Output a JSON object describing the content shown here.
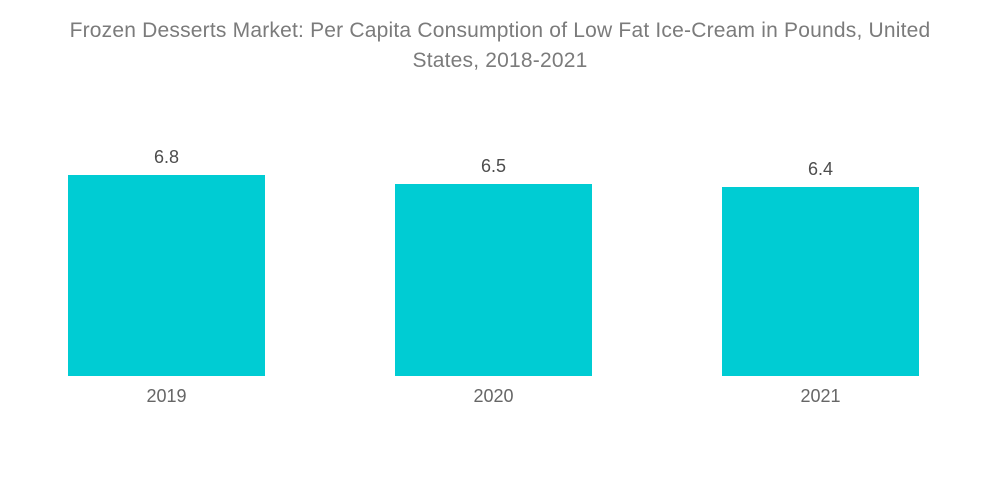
{
  "chart_data": {
    "type": "bar",
    "title": "Frozen Desserts Market: Per Capita Consumption of Low Fat Ice-Cream in Pounds, United States, 2018-2021",
    "title_lines": [
      "Frozen Desserts Market: Per Capita Consumption of Low Fat Ice-Cream in Pounds, United",
      "States, 2018-2021"
    ],
    "categories": [
      "2019",
      "2020",
      "2021"
    ],
    "values": [
      6.8,
      6.5,
      6.4
    ],
    "value_labels": [
      "6.8",
      "6.5",
      "6.4"
    ],
    "xlabel": "",
    "ylabel": "",
    "ylim": [
      0,
      7
    ],
    "grid": false,
    "legend": "none",
    "axes_visible": false,
    "value_label_position": "above-bar",
    "colors": {
      "bar": "#00CCD3",
      "title_text": "#7b7b7b",
      "value_text": "#4d4d4d",
      "tick_text": "#666666",
      "background": "#ffffff"
    }
  }
}
